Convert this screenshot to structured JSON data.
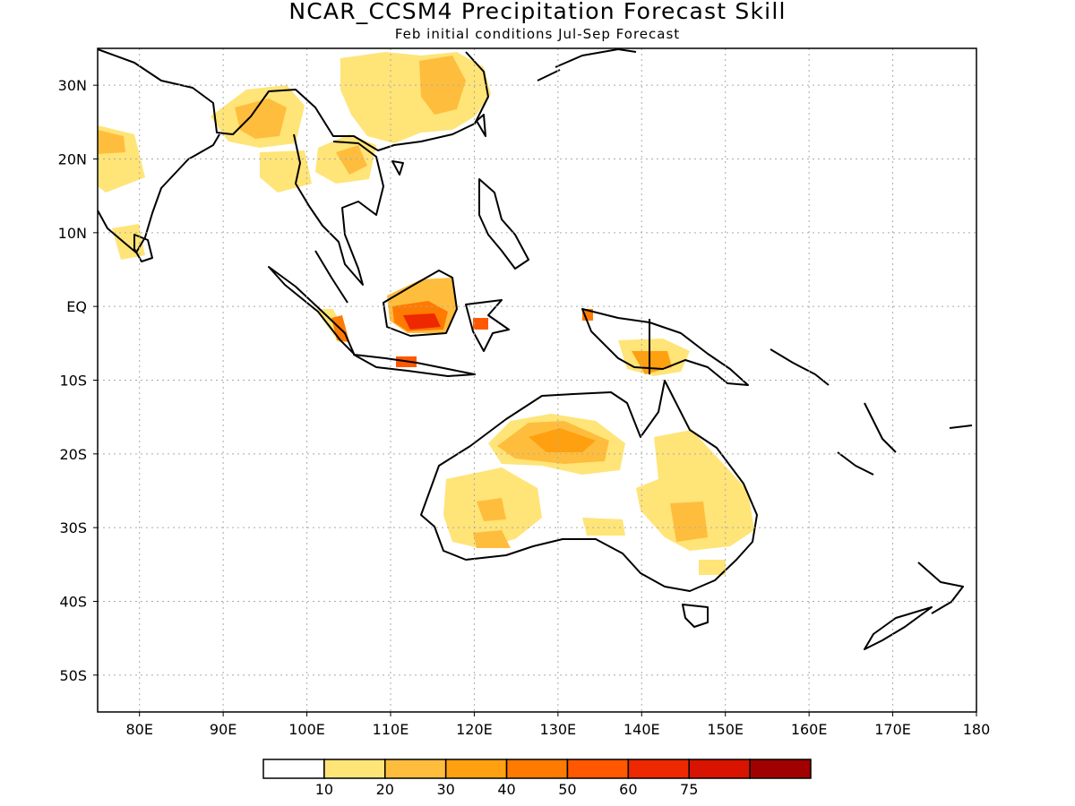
{
  "title": "NCAR_CCSM4 Precipitation Forecast Skill",
  "subtitle": "Feb initial conditions  Jul-Sep Forecast",
  "map": {
    "lon_range": [
      75,
      180
    ],
    "lat_range": [
      -55,
      35
    ],
    "lon_ticks": [
      "80E",
      "90E",
      "100E",
      "110E",
      "120E",
      "130E",
      "140E",
      "150E",
      "160E",
      "170E",
      "180"
    ],
    "lat_ticks": [
      "30N",
      "20N",
      "10N",
      "EQ",
      "10S",
      "20S",
      "30S",
      "40S",
      "50S"
    ],
    "grid": "dotted"
  },
  "colorbar": {
    "labels": [
      "10",
      "20",
      "30",
      "40",
      "50",
      "60",
      "75"
    ],
    "colors": [
      "#ffffff",
      "#ffe478",
      "#ffbd3d",
      "#ffa010",
      "#ff7a00",
      "#ff5800",
      "#ee2800",
      "#d81400",
      "#a00000"
    ]
  },
  "skill_regions": [
    {
      "region": "Northern Australia",
      "value": "20-30"
    },
    {
      "region": "Eastern Australia",
      "value": "10-20"
    },
    {
      "region": "Southern Borneo",
      "value": "40-50"
    },
    {
      "region": "Java",
      "value": "40-50"
    },
    {
      "region": "Southern China",
      "value": "10-30"
    },
    {
      "region": "Southern New Guinea",
      "value": "20-30"
    },
    {
      "region": "Indochina",
      "value": "10-20"
    }
  ]
}
